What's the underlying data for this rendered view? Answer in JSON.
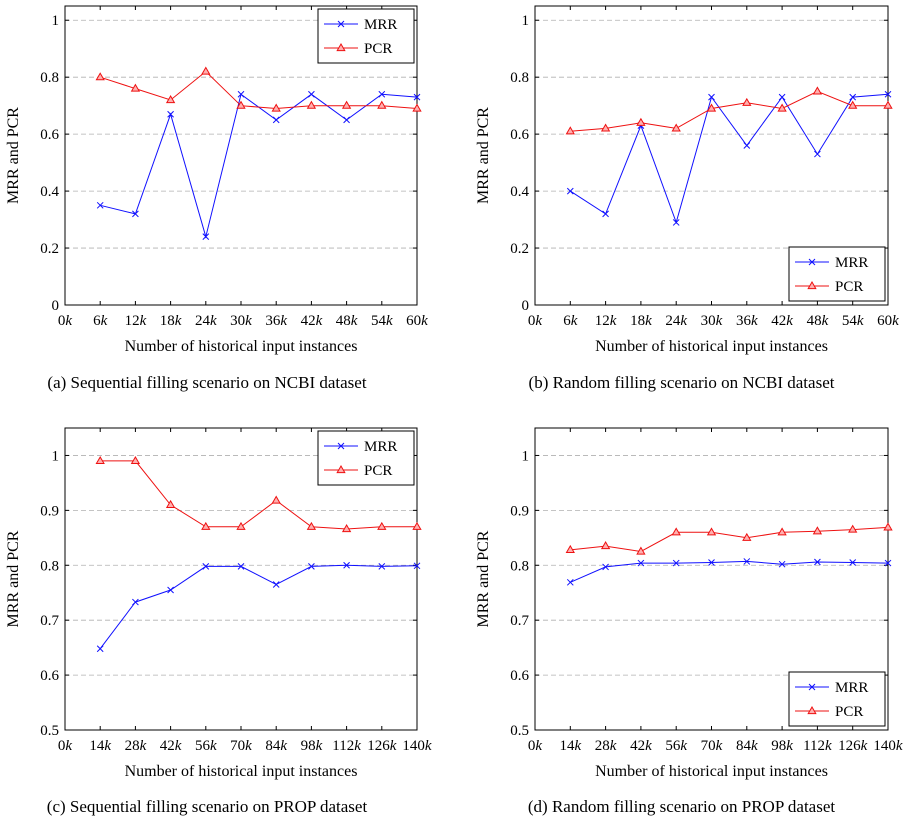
{
  "colors": {
    "mrr": "#1010ff",
    "pcr": "#ee1111",
    "grid": "#b0b0b0"
  },
  "chart_data": [
    {
      "type": "line",
      "caption": "(a)  Sequential filling scenario on NCBI dataset",
      "xlabel": "Number of historical input instances",
      "ylabel": "MRR and PCR",
      "x_ticks": [
        "0",
        "6",
        "12",
        "18",
        "24",
        "30",
        "36",
        "42",
        "48",
        "54",
        "60"
      ],
      "x_unit": "k",
      "x": [
        6,
        12,
        18,
        24,
        30,
        36,
        42,
        48,
        54,
        60
      ],
      "xlim": [
        0,
        60
      ],
      "ylim": [
        0,
        1.05
      ],
      "y_ticks": [
        "0",
        "0.2",
        "0.4",
        "0.6",
        "0.8",
        "1"
      ],
      "y_tick_values": [
        0,
        0.2,
        0.4,
        0.6,
        0.8,
        1
      ],
      "legend_position": "top-right",
      "series": [
        {
          "name": "MRR",
          "marker": "x",
          "values": [
            0.35,
            0.32,
            0.67,
            0.24,
            0.74,
            0.65,
            0.74,
            0.65,
            0.74,
            0.73
          ]
        },
        {
          "name": "PCR",
          "marker": "triangle",
          "values": [
            0.8,
            0.76,
            0.72,
            0.82,
            0.7,
            0.69,
            0.7,
            0.7,
            0.7,
            0.69
          ]
        }
      ]
    },
    {
      "type": "line",
      "caption": "(b)  Random filling scenario on NCBI dataset",
      "xlabel": "Number of historical input instances",
      "ylabel": "MRR and PCR",
      "x_ticks": [
        "0",
        "6",
        "12",
        "18",
        "24",
        "30",
        "36",
        "42",
        "48",
        "54",
        "60"
      ],
      "x_unit": "k",
      "x": [
        6,
        12,
        18,
        24,
        30,
        36,
        42,
        48,
        54,
        60
      ],
      "xlim": [
        0,
        60
      ],
      "ylim": [
        0,
        1.05
      ],
      "y_ticks": [
        "0",
        "0.2",
        "0.4",
        "0.6",
        "0.8",
        "1"
      ],
      "y_tick_values": [
        0,
        0.2,
        0.4,
        0.6,
        0.8,
        1
      ],
      "legend_position": "bottom-right",
      "series": [
        {
          "name": "MRR",
          "marker": "x",
          "values": [
            0.4,
            0.32,
            0.63,
            0.29,
            0.73,
            0.56,
            0.73,
            0.53,
            0.73,
            0.74
          ]
        },
        {
          "name": "PCR",
          "marker": "triangle",
          "values": [
            0.61,
            0.62,
            0.64,
            0.62,
            0.69,
            0.71,
            0.69,
            0.75,
            0.7,
            0.7
          ]
        }
      ]
    },
    {
      "type": "line",
      "caption": "(c)  Sequential filling scenario on PROP dataset",
      "xlabel": "Number of historical input instances",
      "ylabel": "MRR and PCR",
      "x_ticks": [
        "0",
        "14",
        "28",
        "42",
        "56",
        "70",
        "84",
        "98",
        "112",
        "126",
        "140"
      ],
      "x_unit": "k",
      "x": [
        14,
        28,
        42,
        56,
        70,
        84,
        98,
        112,
        126,
        140
      ],
      "xlim": [
        0,
        140
      ],
      "ylim": [
        0.5,
        1.05
      ],
      "y_ticks": [
        "0.5",
        "0.6",
        "0.7",
        "0.8",
        "0.9",
        "1"
      ],
      "y_tick_values": [
        0.5,
        0.6,
        0.7,
        0.8,
        0.9,
        1
      ],
      "legend_position": "top-right",
      "series": [
        {
          "name": "MRR",
          "marker": "x",
          "values": [
            0.648,
            0.733,
            0.755,
            0.798,
            0.798,
            0.765,
            0.798,
            0.8,
            0.798,
            0.799
          ]
        },
        {
          "name": "PCR",
          "marker": "triangle",
          "values": [
            0.99,
            0.99,
            0.91,
            0.87,
            0.87,
            0.918,
            0.87,
            0.866,
            0.87,
            0.87
          ]
        }
      ]
    },
    {
      "type": "line",
      "caption": "(d)  Random filling scenario on PROP dataset",
      "xlabel": "Number of historical input instances",
      "ylabel": "MRR and PCR",
      "x_ticks": [
        "0",
        "14",
        "28",
        "42",
        "56",
        "70",
        "84",
        "98",
        "112",
        "126",
        "140"
      ],
      "x_unit": "k",
      "x": [
        14,
        28,
        42,
        56,
        70,
        84,
        98,
        112,
        126,
        140
      ],
      "xlim": [
        0,
        140
      ],
      "ylim": [
        0.5,
        1.05
      ],
      "y_ticks": [
        "0.5",
        "0.6",
        "0.7",
        "0.8",
        "0.9",
        "1"
      ],
      "y_tick_values": [
        0.5,
        0.6,
        0.7,
        0.8,
        0.9,
        1
      ],
      "legend_position": "bottom-right",
      "series": [
        {
          "name": "MRR",
          "marker": "x",
          "values": [
            0.769,
            0.797,
            0.804,
            0.804,
            0.805,
            0.807,
            0.802,
            0.806,
            0.805,
            0.804
          ]
        },
        {
          "name": "PCR",
          "marker": "triangle",
          "values": [
            0.828,
            0.835,
            0.825,
            0.86,
            0.86,
            0.85,
            0.86,
            0.862,
            0.865,
            0.869
          ]
        }
      ]
    }
  ]
}
